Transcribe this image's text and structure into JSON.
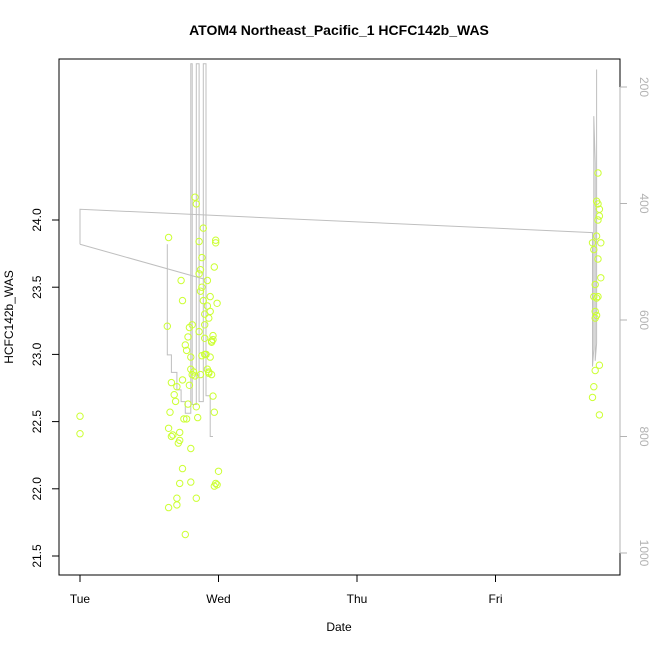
{
  "chart_data": {
    "type": "scatter",
    "title": "ATOM4 Northeast_Pacific_1 HCFC142b_WAS",
    "xlabel": "Date",
    "ylabel": "HCFC142b_WAS",
    "x_ticks": [
      "Tue",
      "Wed",
      "Thu",
      "Fri"
    ],
    "xlim": [
      0,
      3.8
    ],
    "ylim": [
      21.45,
      24.45
    ],
    "y_ticks": [
      "21.5",
      "22.0",
      "22.5",
      "23.0",
      "23.5",
      "24.0"
    ],
    "y2_ticks": [
      "200",
      "400",
      "600",
      "800",
      "1000"
    ],
    "y2lim": [
      1030,
      170
    ],
    "y2_reversed": true,
    "grid": false,
    "colors": {
      "points": "#ccff33",
      "line": "#bfbfbf",
      "right_axis": "#b3b3b3"
    },
    "series": [
      {
        "marker": "circle",
        "x": [
          0.0,
          0.0,
          0.64,
          0.63,
          0.66,
          0.68,
          0.7,
          0.71,
          0.73,
          0.74,
          0.76,
          0.77,
          0.79,
          0.8,
          0.81,
          0.83,
          0.84,
          0.86,
          0.87,
          0.88,
          0.89,
          0.9,
          0.91,
          0.92,
          0.93,
          0.94,
          0.95,
          0.96,
          0.97,
          0.98,
          0.99,
          1.0,
          0.64,
          0.65,
          0.67,
          0.69,
          0.72,
          0.74,
          0.78,
          0.8,
          0.82,
          0.84,
          0.86,
          0.88,
          0.9,
          0.92,
          0.94,
          0.96,
          0.98,
          0.64,
          0.66,
          0.7,
          0.72,
          0.75,
          0.77,
          0.79,
          0.81,
          0.85,
          0.87,
          0.89,
          0.91,
          0.93,
          0.95,
          0.97,
          0.99,
          0.7,
          0.72,
          0.74,
          0.78,
          0.8,
          0.83,
          0.86,
          0.88,
          0.9,
          0.92,
          0.94,
          0.96,
          0.98,
          0.76,
          0.8,
          0.84,
          0.87,
          0.9,
          0.93,
          0.95,
          0.97,
          3.7,
          3.71,
          3.72,
          3.72,
          3.73,
          3.73,
          3.74,
          3.74,
          3.75,
          3.75,
          3.76,
          3.76,
          3.71,
          3.72,
          3.73,
          3.74,
          3.75,
          3.7,
          3.71,
          3.72,
          3.74,
          3.75,
          3.73,
          3.74
        ],
        "y": [
          22.54,
          22.41,
          23.87,
          23.21,
          22.79,
          22.7,
          22.76,
          22.34,
          23.55,
          23.4,
          23.07,
          22.52,
          23.2,
          22.89,
          22.85,
          24.17,
          24.12,
          23.84,
          23.63,
          23.5,
          23.4,
          23.12,
          23.0,
          22.89,
          22.87,
          23.32,
          22.85,
          23.11,
          22.57,
          23.83,
          22.03,
          22.13,
          22.45,
          22.57,
          22.4,
          22.65,
          22.42,
          22.15,
          22.63,
          22.3,
          22.87,
          22.61,
          23.17,
          22.99,
          23.22,
          23.36,
          22.98,
          22.69,
          22.04,
          21.86,
          22.39,
          21.88,
          22.36,
          22.52,
          23.03,
          22.77,
          23.22,
          22.53,
          22.85,
          23.94,
          23.0,
          23.27,
          23.09,
          23.65,
          23.38,
          21.93,
          22.04,
          22.81,
          23.13,
          22.98,
          22.84,
          23.6,
          23.72,
          23.3,
          23.55,
          23.43,
          23.14,
          23.85,
          21.66,
          22.05,
          21.93,
          23.47,
          23.0,
          22.86,
          23.1,
          22.02,
          22.68,
          22.76,
          22.88,
          23.27,
          23.42,
          23.88,
          23.71,
          24.35,
          24.08,
          24.03,
          23.83,
          23.57,
          23.43,
          23.52,
          23.29,
          24.12,
          22.92,
          23.83,
          23.78,
          23.32,
          23.43,
          22.55,
          24.14,
          24.0
        ],
        "note_x": "x in days after Tuesday 00:00 (Tue=0, Wed=1, Thu=2, Fri=3)"
      },
      {
        "axis": "right",
        "line": true,
        "x": [
          0.0,
          0.0,
          3.7,
          3.7,
          3.71,
          3.71,
          3.72,
          3.72,
          3.73,
          3.73
        ],
        "y": [
          470,
          410,
          450,
          680,
          650,
          250,
          330,
          670,
          640,
          170
        ]
      }
    ]
  }
}
